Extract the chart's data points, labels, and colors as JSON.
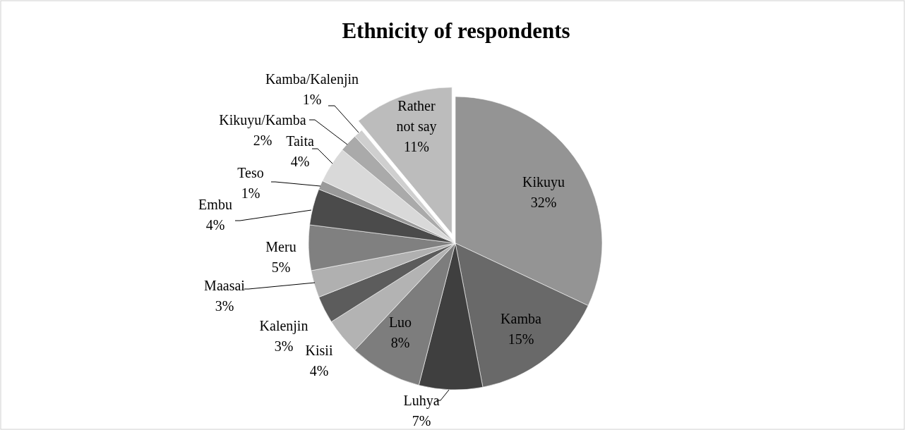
{
  "chart_data": {
    "type": "pie",
    "title": "Ethnicity of respondents",
    "categories": [
      "Kikuyu",
      "Kamba",
      "Luhya",
      "Luo",
      "Kisii",
      "Kalenjin",
      "Maasai",
      "Meru",
      "Embu",
      "Teso",
      "Taita",
      "Kikuyu/Kamba",
      "Kamba/Kalenjin",
      "Rather not say"
    ],
    "values": [
      32,
      15,
      7,
      8,
      4,
      3,
      3,
      5,
      4,
      1,
      4,
      2,
      1,
      11
    ],
    "colors": [
      "#949494",
      "#696969",
      "#3f3f3f",
      "#7d7d7d",
      "#b3b3b3",
      "#5c5c5c",
      "#b0b0b0",
      "#808080",
      "#4b4b4b",
      "#9a9a9a",
      "#d9d9d9",
      "#aaaaaa",
      "#cfcfcf",
      "#bcbcbc"
    ],
    "value_labels": [
      "32%",
      "15%",
      "7%",
      "8%",
      "4%",
      "3%",
      "3%",
      "5%",
      "4%",
      "1%",
      "4%",
      "2%",
      "1%",
      "11%"
    ]
  }
}
